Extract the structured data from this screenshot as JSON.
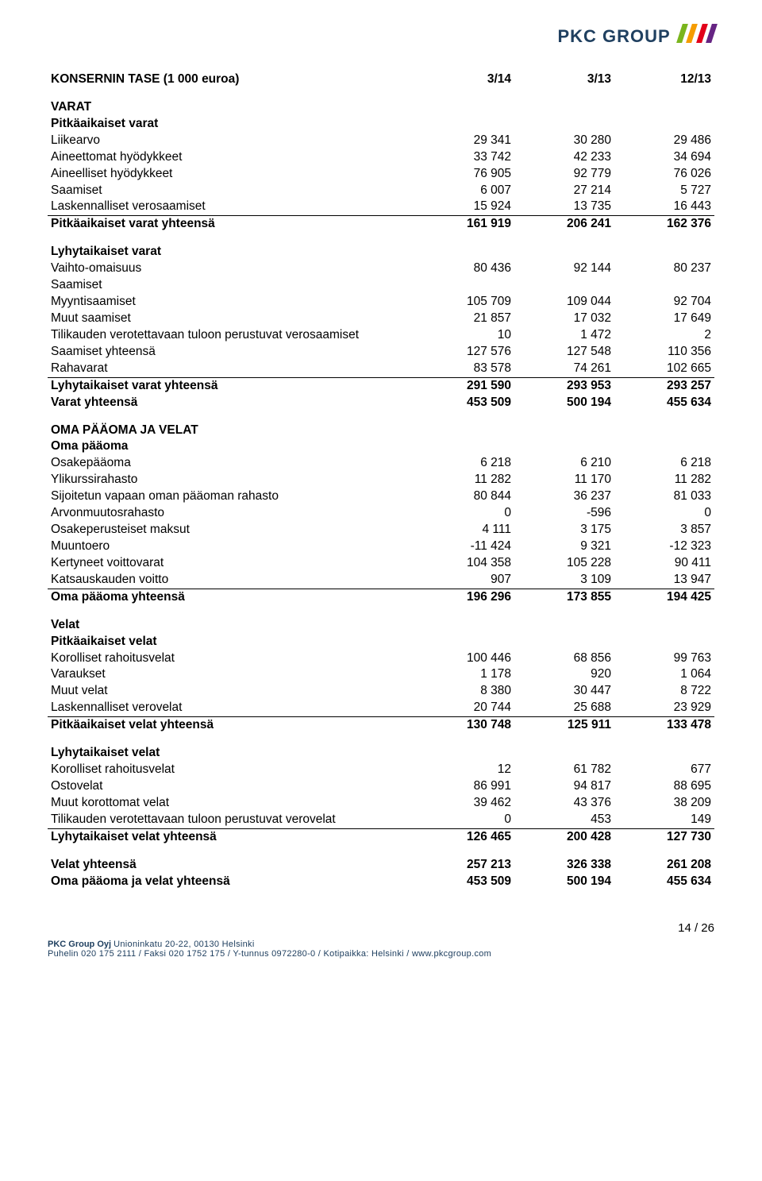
{
  "logo": {
    "text": "PKC GROUP",
    "stripe_colors": [
      "#7ab51d",
      "#f59c00",
      "#e2001a",
      "#662483"
    ]
  },
  "title": "KONSERNIN TASE (1 000 euroa)",
  "columns": [
    "3/14",
    "3/13",
    "12/13"
  ],
  "sections": [
    {
      "head": "VARAT",
      "groups": [
        {
          "subhead": "Pitkäaikaiset varat",
          "rows": [
            {
              "label": "Liikearvo",
              "v": [
                "29 341",
                "30 280",
                "29 486"
              ]
            },
            {
              "label": "Aineettomat hyödykkeet",
              "v": [
                "33 742",
                "42 233",
                "34 694"
              ]
            },
            {
              "label": "Aineelliset hyödykkeet",
              "v": [
                "76 905",
                "92 779",
                "76 026"
              ]
            },
            {
              "label": "Saamiset",
              "v": [
                "6 007",
                "27 214",
                "5 727"
              ]
            },
            {
              "label": "Laskennalliset verosaamiset",
              "v": [
                "15 924",
                "13 735",
                "16 443"
              ],
              "underline": true
            }
          ],
          "total": {
            "label": "Pitkäaikaiset varat yhteensä",
            "v": [
              "161 919",
              "206 241",
              "162 376"
            ]
          }
        },
        {
          "subhead": "Lyhytaikaiset varat",
          "rows": [
            {
              "label": "Vaihto-omaisuus",
              "v": [
                "80 436",
                "92 144",
                "80 237"
              ]
            },
            {
              "label": "Saamiset",
              "v": [
                "",
                "",
                ""
              ]
            },
            {
              "label": "Myyntisaamiset",
              "v": [
                "105 709",
                "109 044",
                "92 704"
              ]
            },
            {
              "label": "Muut saamiset",
              "v": [
                "21 857",
                "17 032",
                "17 649"
              ]
            },
            {
              "label": "Tilikauden verotettavaan tuloon perustuvat verosaamiset",
              "v": [
                "10",
                "1 472",
                "2"
              ]
            },
            {
              "label": "Saamiset yhteensä",
              "v": [
                "127 576",
                "127 548",
                "110 356"
              ]
            },
            {
              "label": "Rahavarat",
              "v": [
                "83 578",
                "74 261",
                "102 665"
              ],
              "underline": true
            }
          ],
          "total": {
            "label": "Lyhytaikaiset varat yhteensä",
            "v": [
              "291 590",
              "293 953",
              "293 257"
            ]
          }
        }
      ],
      "grand_total": {
        "label": "Varat yhteensä",
        "v": [
          "453 509",
          "500 194",
          "455 634"
        ]
      }
    },
    {
      "head": "OMA PÄÄOMA JA VELAT",
      "groups": [
        {
          "subhead": "Oma pääoma",
          "rows": [
            {
              "label": "Osakepääoma",
              "v": [
                "6 218",
                "6 210",
                "6 218"
              ]
            },
            {
              "label": "Ylikurssirahasto",
              "v": [
                "11 282",
                "11 170",
                "11 282"
              ]
            },
            {
              "label": "Sijoitetun vapaan oman pääoman rahasto",
              "v": [
                "80 844",
                "36 237",
                "81 033"
              ]
            },
            {
              "label": "Arvonmuutosrahasto",
              "v": [
                "0",
                "-596",
                "0"
              ]
            },
            {
              "label": "Osakeperusteiset maksut",
              "v": [
                "4 111",
                "3 175",
                "3 857"
              ]
            },
            {
              "label": "Muuntoero",
              "v": [
                "-11 424",
                "9 321",
                "-12 323"
              ]
            },
            {
              "label": "Kertyneet voittovarat",
              "v": [
                "104 358",
                "105 228",
                "90 411"
              ]
            },
            {
              "label": "Katsauskauden voitto",
              "v": [
                "907",
                "3 109",
                "13 947"
              ],
              "underline": true
            }
          ],
          "total": {
            "label": "Oma pääoma yhteensä",
            "v": [
              "196 296",
              "173 855",
              "194 425"
            ]
          }
        },
        {
          "subhead": "Velat",
          "sub_subhead": "Pitkäaikaiset velat",
          "rows": [
            {
              "label": "Korolliset rahoitusvelat",
              "v": [
                "100 446",
                "68 856",
                "99 763"
              ]
            },
            {
              "label": "Varaukset",
              "v": [
                "1 178",
                "920",
                "1 064"
              ]
            },
            {
              "label": "Muut velat",
              "v": [
                "8 380",
                "30 447",
                "8 722"
              ]
            },
            {
              "label": "Laskennalliset verovelat",
              "v": [
                "20 744",
                "25 688",
                "23 929"
              ],
              "underline": true
            }
          ],
          "total": {
            "label": "Pitkäaikaiset velat yhteensä",
            "v": [
              "130 748",
              "125 911",
              "133 478"
            ]
          }
        },
        {
          "subhead": "Lyhytaikaiset velat",
          "rows": [
            {
              "label": "Korolliset rahoitusvelat",
              "v": [
                "12",
                "61 782",
                "677"
              ]
            },
            {
              "label": "Ostovelat",
              "v": [
                "86 991",
                "94 817",
                "88 695"
              ]
            },
            {
              "label": "Muut korottomat velat",
              "v": [
                "39 462",
                "43 376",
                "38 209"
              ]
            },
            {
              "label": "Tilikauden verotettavaan tuloon perustuvat verovelat",
              "v": [
                "0",
                "453",
                "149"
              ],
              "underline": true
            }
          ],
          "total": {
            "label": "Lyhytaikaiset velat yhteensä",
            "v": [
              "126 465",
              "200 428",
              "127 730"
            ]
          }
        }
      ],
      "extra_totals": [
        {
          "label": "Velat yhteensä",
          "v": [
            "257 213",
            "326 338",
            "261 208"
          ]
        },
        {
          "label": "Oma pääoma ja velat yhteensä",
          "v": [
            "453 509",
            "500 194",
            "455 634"
          ]
        }
      ]
    }
  ],
  "footer": {
    "pagecount": "14 / 26",
    "company": "PKC Group Oyj",
    "address": "Unioninkatu 20-22, 00130 Helsinki",
    "line2": "Puhelin 020 175 2111 / Faksi 020 1752 175 / Y-tunnus 0972280-0 / Kotipaikka: Helsinki / www.pkcgroup.com"
  }
}
